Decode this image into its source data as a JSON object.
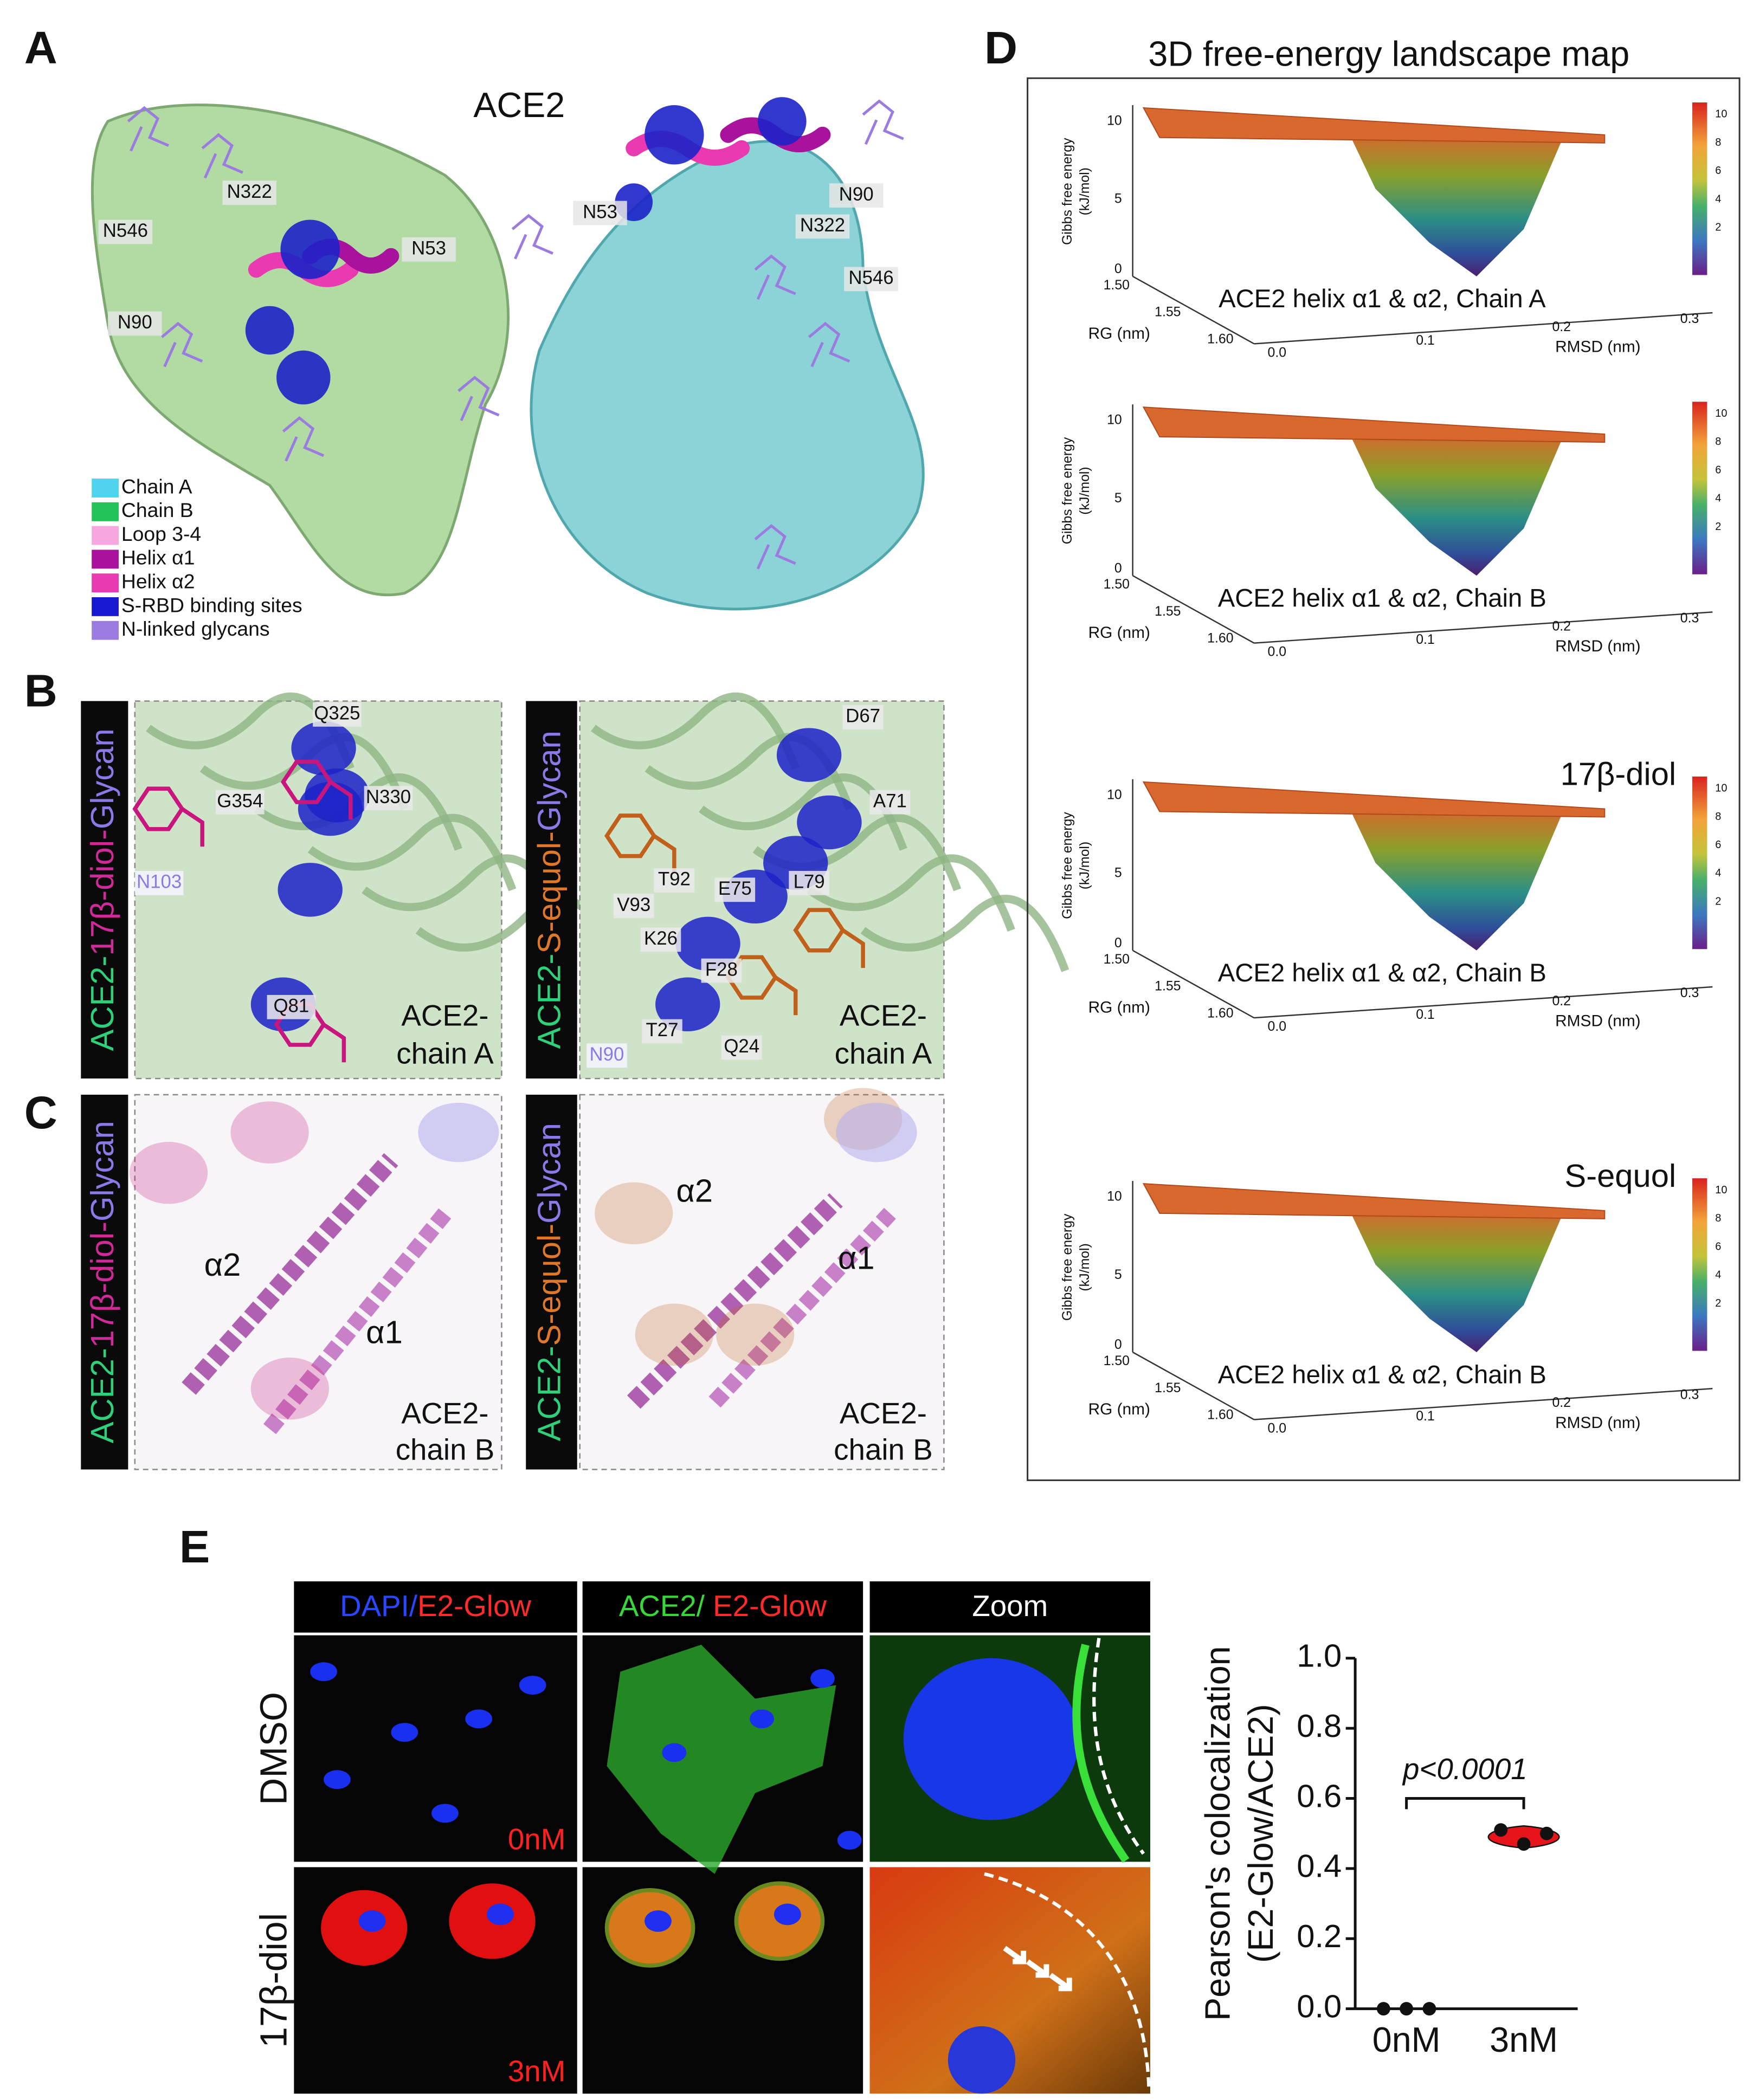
{
  "panel_a": {
    "label": "A",
    "title": "ACE2",
    "residues": [
      "N322",
      "N546",
      "N90",
      "N53",
      "N53",
      "N90",
      "N322",
      "N546"
    ],
    "legend": [
      "Chain A",
      "Chain B",
      "Loop 3-4",
      "Helix α1",
      "Helix α2",
      "S-RBD binding sites",
      "N-linked glycans"
    ],
    "legend_colors": [
      "#4fd3ee",
      "#22c45a",
      "#f7a6df",
      "#a8129c",
      "#ea3ab2",
      "#1818d0",
      "#9b7be0"
    ]
  },
  "panel_b": {
    "label": "B",
    "tiles": [
      {
        "side": [
          "ACE2-",
          "17β-diol-",
          "Glycan"
        ],
        "residues": [
          "Q325",
          "G354",
          "N330",
          "N103",
          "Q81"
        ],
        "caption": [
          "ACE2-",
          "chain A"
        ]
      },
      {
        "side": [
          "ACE2-",
          "S-equol-",
          "Glycan"
        ],
        "residues": [
          "D67",
          "A71",
          "T92",
          "E75",
          "L79",
          "V93",
          "K26",
          "F28",
          "T27",
          "Q24",
          "N90"
        ],
        "caption": [
          "ACE2-",
          "chain A"
        ]
      }
    ]
  },
  "panel_c": {
    "label": "C",
    "tiles": [
      {
        "side": [
          "ACE2-",
          "17β-diol-",
          "Glycan"
        ],
        "helices": [
          "α2",
          "α1"
        ],
        "caption": [
          "ACE2-",
          "chain B"
        ]
      },
      {
        "side": [
          "ACE2-",
          "S-equol-",
          "Glycan"
        ],
        "helices": [
          "α2",
          "α1"
        ],
        "caption": [
          "ACE2-",
          "chain B"
        ]
      }
    ]
  },
  "panel_d": {
    "label": "D",
    "title": "3D free-energy landscape map",
    "plots": [
      {
        "ylabel": [
          "Gibbs free energy",
          "(kJ/mol)"
        ],
        "zticks": [
          10,
          5,
          0
        ],
        "rg_label": "RG (nm)",
        "rg_ticks": [
          {
            "value": 1.5,
            "label": "1.50"
          },
          1.55,
          {
            "value": 1.6,
            "label": "1.60"
          }
        ],
        "rmsd_label": "RMSD (nm)",
        "rmsd_ticks": [
          {
            "value": 0,
            "label": "0.0"
          },
          0.1,
          0.2,
          0.3
        ],
        "colorbar_ticks": [
          10,
          8,
          6,
          4,
          2
        ],
        "caption": "ACE2 helix α1 & α2, Chain A"
      },
      {
        "ylabel": [
          "Gibbs free energy",
          "(kJ/mol)"
        ],
        "zticks": [
          10,
          5,
          0
        ],
        "rg_label": "RG (nm)",
        "rg_ticks": [
          {
            "value": 1.5,
            "label": "1.50"
          },
          1.55,
          {
            "value": 1.6,
            "label": "1.60"
          }
        ],
        "rmsd_label": "RMSD (nm)",
        "rmsd_ticks": [
          {
            "value": 0,
            "label": "0.0"
          },
          0.1,
          0.2,
          0.3
        ],
        "colorbar_ticks": [
          10,
          8,
          6,
          4,
          2
        ],
        "caption": "ACE2 helix α1 & α2, Chain B"
      },
      {
        "ligand": "17β-diol",
        "ylabel": [
          "Gibbs free energy",
          "(kJ/mol)"
        ],
        "zticks": [
          10,
          5,
          0
        ],
        "rg_label": "RG (nm)",
        "rg_ticks": [
          {
            "value": 1.5,
            "label": "1.50"
          },
          1.55,
          {
            "value": 1.6,
            "label": "1.60"
          }
        ],
        "rmsd_label": "RMSD (nm)",
        "rmsd_ticks": [
          {
            "value": 0,
            "label": "0.0"
          },
          0.1,
          0.2,
          0.3
        ],
        "colorbar_ticks": [
          10,
          8,
          6,
          4,
          2
        ],
        "caption": "ACE2 helix α1 & α2, Chain B"
      },
      {
        "ligand": "S-equol",
        "ylabel": [
          "Gibbs free energy",
          "(kJ/mol)"
        ],
        "zticks": [
          10,
          5,
          0
        ],
        "rg_label": "RG (nm)",
        "rg_ticks": [
          {
            "value": 1.5,
            "label": "1.50"
          },
          1.55,
          {
            "value": 1.6,
            "label": "1.60"
          }
        ],
        "rmsd_label": "RMSD (nm)",
        "rmsd_ticks": [
          {
            "value": 0,
            "label": "0.0"
          },
          0.1,
          0.2,
          0.3
        ],
        "colorbar_ticks": [
          10,
          8,
          6,
          4,
          2
        ],
        "caption": "ACE2 helix α1 & α2, Chain B"
      }
    ]
  },
  "panel_e": {
    "label": "E",
    "headers": [
      [
        "DAPI/",
        "E2-Glow"
      ],
      [
        "ACE2/ ",
        "E2-Glow"
      ],
      [
        "Zoom"
      ]
    ],
    "rows": [
      "DMSO",
      "17β-diol"
    ],
    "doses": [
      "0nM",
      "3nM"
    ]
  },
  "chart_data": {
    "type": "strip",
    "categories": [
      "0nM",
      "3nM"
    ],
    "values": [
      [
        0,
        0,
        0
      ],
      [
        0.51,
        0.47,
        0.5
      ]
    ],
    "ylabel": [
      "Pearson's colocalization",
      "(E2-Glow/ACE2)"
    ],
    "annotation": "p<0.0001",
    "color": "#e8141c",
    "ylim": [
      0,
      1
    ],
    "yticks": [
      {
        "value": 0,
        "label": "0.0"
      },
      0.2,
      0.4,
      0.6,
      0.8,
      {
        "value": 1,
        "label": "1.0"
      }
    ]
  }
}
